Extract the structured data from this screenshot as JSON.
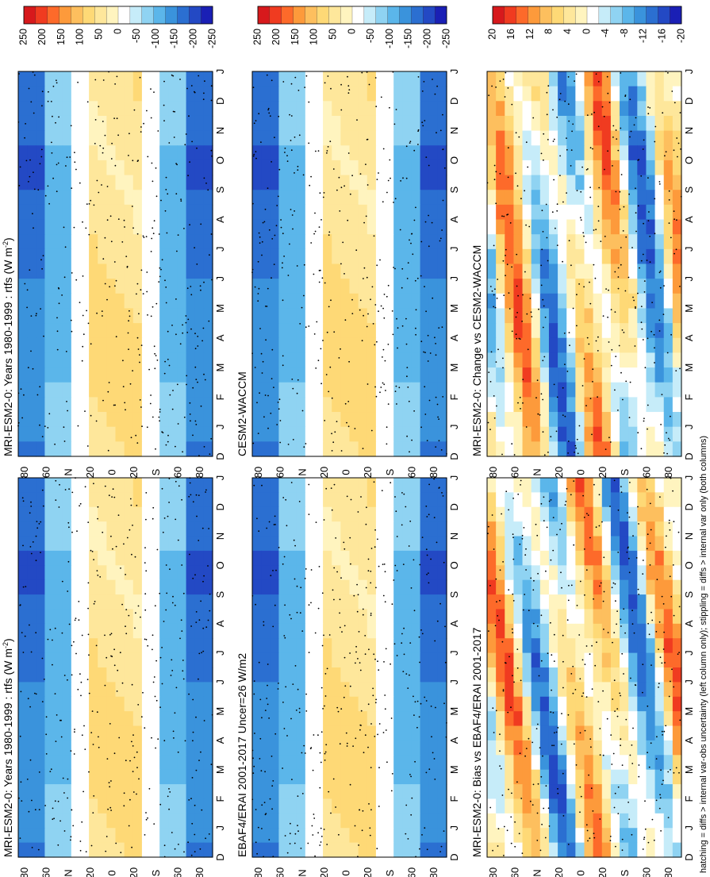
{
  "figure": {
    "footer": "hatching = diffs > internal var-obs uncertainty (left column only); stippling = diffs > internal var only (both columns)"
  },
  "months": [
    "D",
    "J",
    "F",
    "M",
    "A",
    "M",
    "J",
    "J",
    "A",
    "S",
    "O",
    "N",
    "D",
    "J"
  ],
  "lat_labels": [
    "80",
    "60",
    "N",
    "20",
    "0",
    "20",
    "S",
    "60",
    "80"
  ],
  "panels": [
    {
      "id": "p1",
      "title": "MRI-ESM2-0: Years 1980-1999 : rtfs (W m",
      "title_sup": "-2",
      "title_end": ")",
      "colorbar": "cb-abs",
      "field": "abs"
    },
    {
      "id": "p2",
      "title": "MRI-ESM2-0: Years 1980-1999 : rtfs (W m",
      "title_sup": "-2",
      "title_end": ")",
      "colorbar": "cb-abs",
      "field": "abs"
    },
    {
      "id": "p3",
      "title": "EBAF4/ERAI 2001-2017 Uncer=26 W/m2",
      "title_sup": "",
      "title_end": "",
      "colorbar": "cb-abs",
      "field": "abs"
    },
    {
      "id": "p4",
      "title": "CESM2-WACCM",
      "title_sup": "",
      "title_end": "",
      "colorbar": "cb-abs",
      "field": "abs"
    },
    {
      "id": "p5",
      "title": "MRI-ESM2-0: Bias vs EBAF4/ERAI 2001-2017",
      "title_sup": "",
      "title_end": "",
      "colorbar": "cb-diff",
      "field": "bias"
    },
    {
      "id": "p6",
      "title": "MRI-ESM2-0: Change vs CESM2-WACCM",
      "title_sup": "",
      "title_end": "",
      "colorbar": "cb-diff",
      "field": "change"
    }
  ],
  "colorbars": {
    "cb-abs": {
      "labels": [
        "250",
        "200",
        "150",
        "100",
        "50",
        "0",
        "-50",
        "-100",
        "-150",
        "-200",
        "-250"
      ]
    },
    "cb-diff": {
      "labels": [
        "20",
        "16",
        "12",
        "8",
        "4",
        "0",
        "-4",
        "-8",
        "-12",
        "-16",
        "-20"
      ]
    }
  },
  "colors": {
    "scale": [
      "#d7191c",
      "#f03b20",
      "#fd6a2a",
      "#fd9a3b",
      "#fdbf5e",
      "#fed976",
      "#fee79b",
      "#fff4bf",
      "#ffffff",
      "#c6ecf9",
      "#8fd3f2",
      "#5bb6ea",
      "#3a93dc",
      "#2b6fd1",
      "#2349c4",
      "#1a1fb5"
    ]
  },
  "chart_data": [
    {
      "type": "heatmap",
      "panel": "MRI-ESM2-0: Years 1980-1999 : rtfs (W m-2)",
      "x": "month D..J",
      "y": "latitude 80N..80S",
      "xlabel": "",
      "ylabel": "",
      "colorbar_range": [
        -250,
        250
      ],
      "zones": [
        {
          "lat": "60-80N",
          "value": -150
        },
        {
          "lat": "40-60N",
          "value": -100
        },
        {
          "lat": "20-40N",
          "value": 0
        },
        {
          "lat": "0-20N",
          "value": 50
        },
        {
          "lat": "0-20S",
          "value": 50
        },
        {
          "lat": "20-40S",
          "value": 0
        },
        {
          "lat": "40-60S",
          "value": -100
        },
        {
          "lat": "60-80S",
          "value": -150
        }
      ]
    },
    {
      "type": "heatmap",
      "panel": "MRI-ESM2-0: Years 1980-1999 : rtfs (W m-2)",
      "colorbar_range": [
        -250,
        250
      ]
    },
    {
      "type": "heatmap",
      "panel": "EBAF4/ERAI 2001-2017 Uncer=26 W/m2",
      "colorbar_range": [
        -250,
        250
      ]
    },
    {
      "type": "heatmap",
      "panel": "CESM2-WACCM",
      "colorbar_range": [
        -250,
        250
      ]
    },
    {
      "type": "heatmap",
      "panel": "MRI-ESM2-0: Bias vs EBAF4/ERAI 2001-2017",
      "colorbar_range": [
        -20,
        20
      ]
    },
    {
      "type": "heatmap",
      "panel": "MRI-ESM2-0: Change vs CESM2-WACCM",
      "colorbar_range": [
        -20,
        20
      ]
    }
  ]
}
